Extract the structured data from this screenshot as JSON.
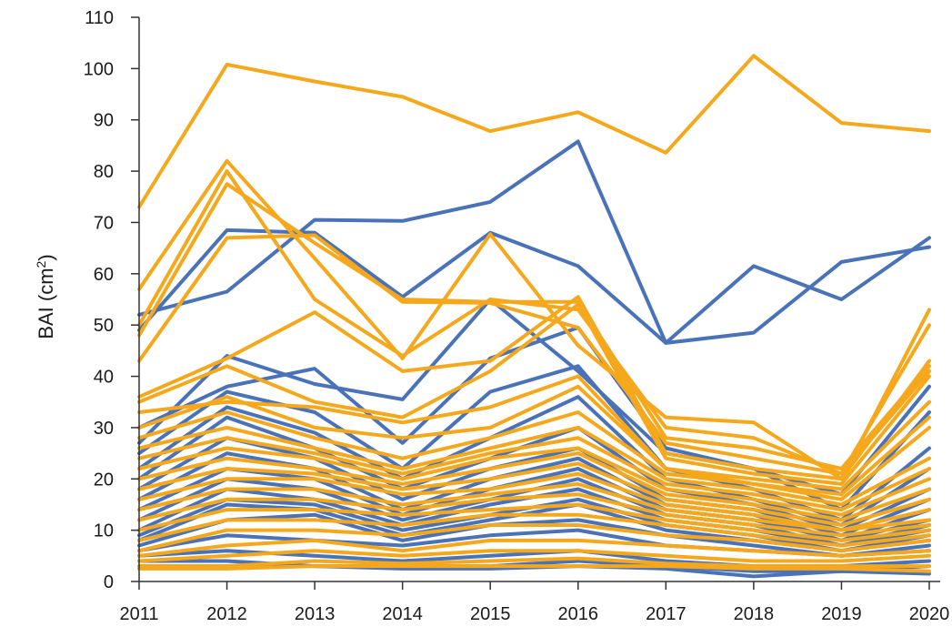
{
  "chart_data": {
    "type": "line",
    "title": "",
    "xlabel": "",
    "ylabel": "BAI (cm",
    "ylabel_superscript": "2",
    "ylabel_close": ")",
    "x": [
      2011,
      2012,
      2013,
      2014,
      2015,
      2016,
      2017,
      2018,
      2019,
      2020
    ],
    "ylim": [
      0,
      110
    ],
    "yticks": [
      0,
      10,
      20,
      30,
      40,
      50,
      60,
      70,
      80,
      90,
      100,
      110
    ],
    "grid": false,
    "legend": "none",
    "colors": {
      "blue": "#4a72b8",
      "orange": "#f5a81c",
      "axis": "#333333",
      "text": "#1a1a1a"
    },
    "series": [
      {
        "color": "blue",
        "values": [
          49,
          68.5,
          68,
          55.5,
          68,
          61.5,
          46.5,
          61.5,
          55,
          67
        ]
      },
      {
        "color": "blue",
        "values": [
          52,
          56.5,
          70.5,
          70.3,
          74,
          85.8,
          46.5,
          48.5,
          62.3,
          65.2
        ]
      },
      {
        "color": "blue",
        "values": [
          27,
          44,
          38.5,
          35.5,
          55,
          41,
          25,
          22,
          17,
          38
        ]
      },
      {
        "color": "blue",
        "values": [
          30,
          38,
          41.5,
          27,
          43.5,
          49.5,
          26,
          22,
          14,
          33
        ]
      },
      {
        "color": "blue",
        "values": [
          25,
          37,
          33,
          22,
          37,
          42,
          22,
          18,
          12,
          26
        ]
      },
      {
        "color": "blue",
        "values": [
          22,
          34,
          29,
          20,
          28,
          36,
          20,
          16,
          11,
          22
        ]
      },
      {
        "color": "blue",
        "values": [
          20,
          32,
          26,
          18,
          24,
          30,
          18,
          15,
          10,
          18
        ]
      },
      {
        "color": "blue",
        "values": [
          18,
          28,
          24,
          16,
          22,
          26,
          16,
          14,
          9,
          16
        ]
      },
      {
        "color": "blue",
        "values": [
          16,
          25,
          22,
          14,
          20,
          24,
          15,
          13,
          8,
          14
        ]
      },
      {
        "color": "blue",
        "values": [
          14,
          22,
          20,
          13,
          18,
          22,
          14,
          12,
          8,
          12
        ]
      },
      {
        "color": "blue",
        "values": [
          12,
          20,
          18,
          12,
          16,
          20,
          13,
          11,
          7,
          11
        ]
      },
      {
        "color": "blue",
        "values": [
          10,
          18,
          16,
          11,
          15,
          18,
          12,
          10,
          7,
          10
        ]
      },
      {
        "color": "blue",
        "values": [
          9,
          16,
          15,
          10,
          13,
          16,
          11,
          9,
          6,
          9
        ]
      },
      {
        "color": "blue",
        "values": [
          8,
          15,
          14,
          9,
          12,
          15,
          10,
          8,
          6,
          8
        ]
      },
      {
        "color": "blue",
        "values": [
          7,
          12,
          13,
          8,
          11,
          12,
          9,
          7,
          5,
          7
        ]
      },
      {
        "color": "blue",
        "values": [
          6,
          9,
          8,
          7,
          9,
          10,
          7,
          6,
          5,
          6
        ]
      },
      {
        "color": "blue",
        "values": [
          5,
          6,
          5,
          4,
          5,
          6,
          4,
          3,
          3,
          4
        ]
      },
      {
        "color": "blue",
        "values": [
          4,
          4,
          3,
          3,
          3,
          4,
          3,
          2,
          2,
          3
        ]
      },
      {
        "color": "blue",
        "values": [
          3,
          3,
          3,
          2.5,
          2.5,
          3,
          2.5,
          1,
          2,
          1.5
        ]
      },
      {
        "color": "orange",
        "values": [
          73,
          100.8,
          97.5,
          94.5,
          87.8,
          91.5,
          83.6,
          102.5,
          89.4,
          87.8
        ]
      },
      {
        "color": "orange",
        "values": [
          57,
          82,
          63,
          43.5,
          67.7,
          46,
          32,
          31,
          20,
          53
        ]
      },
      {
        "color": "orange",
        "values": [
          50,
          80,
          55,
          44,
          55,
          53,
          30,
          28,
          21,
          50
        ]
      },
      {
        "color": "orange",
        "values": [
          48,
          77.5,
          66,
          55,
          54.5,
          54.5,
          28,
          26,
          22,
          42
        ]
      },
      {
        "color": "orange",
        "values": [
          43,
          67,
          67.5,
          54.5,
          54.3,
          49.5,
          27,
          24,
          21,
          41
        ]
      },
      {
        "color": "orange",
        "values": [
          36,
          43.5,
          52.5,
          41,
          43,
          55.5,
          25,
          22,
          20,
          43
        ]
      },
      {
        "color": "orange",
        "values": [
          35,
          42,
          35,
          32,
          41,
          54,
          24,
          21,
          19,
          40
        ]
      },
      {
        "color": "orange",
        "values": [
          33,
          35,
          34,
          31,
          34,
          40,
          22,
          20,
          18,
          35
        ]
      },
      {
        "color": "orange",
        "values": [
          30,
          36,
          30,
          28,
          30,
          38,
          22,
          19,
          17,
          32
        ]
      },
      {
        "color": "orange",
        "values": [
          28,
          33,
          28,
          24,
          28,
          33,
          21,
          19,
          16,
          30
        ]
      },
      {
        "color": "orange",
        "values": [
          26,
          30,
          26,
          22,
          26,
          30,
          20,
          18,
          15,
          24
        ]
      },
      {
        "color": "orange",
        "values": [
          24,
          28,
          25,
          21,
          25,
          28,
          19,
          17,
          14,
          22
        ]
      },
      {
        "color": "orange",
        "values": [
          22,
          26,
          24,
          20,
          24,
          26,
          18,
          16,
          13,
          20
        ]
      },
      {
        "color": "orange",
        "values": [
          20,
          24,
          22,
          19,
          22,
          25,
          17,
          15,
          12,
          18
        ]
      },
      {
        "color": "orange",
        "values": [
          18,
          22,
          21,
          18,
          20,
          23,
          16,
          14,
          11,
          16
        ]
      },
      {
        "color": "orange",
        "values": [
          16,
          20,
          20,
          17,
          18,
          21,
          15,
          13,
          10,
          14
        ]
      },
      {
        "color": "orange",
        "values": [
          14,
          18,
          18,
          15,
          17,
          19,
          14,
          12,
          10,
          12
        ]
      },
      {
        "color": "orange",
        "values": [
          12,
          16,
          16,
          14,
          16,
          17,
          13,
          11,
          9,
          11
        ]
      },
      {
        "color": "orange",
        "values": [
          10,
          14,
          14,
          13,
          14,
          15,
          12,
          10,
          8,
          10
        ]
      },
      {
        "color": "orange",
        "values": [
          8,
          12,
          12,
          11,
          13,
          13,
          11,
          9,
          7,
          9
        ]
      },
      {
        "color": "orange",
        "values": [
          6,
          10,
          10,
          9,
          11,
          11,
          9,
          8,
          6,
          8
        ]
      },
      {
        "color": "orange",
        "values": [
          5,
          7,
          8,
          6,
          8,
          8,
          7,
          6,
          5,
          6
        ]
      },
      {
        "color": "orange",
        "values": [
          4,
          5,
          6,
          5,
          6,
          6,
          5,
          4,
          4,
          5
        ]
      },
      {
        "color": "orange",
        "values": [
          3,
          3,
          4,
          3.5,
          4,
          4.5,
          3.5,
          3,
          3,
          3
        ]
      },
      {
        "color": "orange",
        "values": [
          2.5,
          2.5,
          3,
          3,
          3,
          3,
          3,
          2.5,
          2.5,
          2
        ]
      }
    ]
  }
}
